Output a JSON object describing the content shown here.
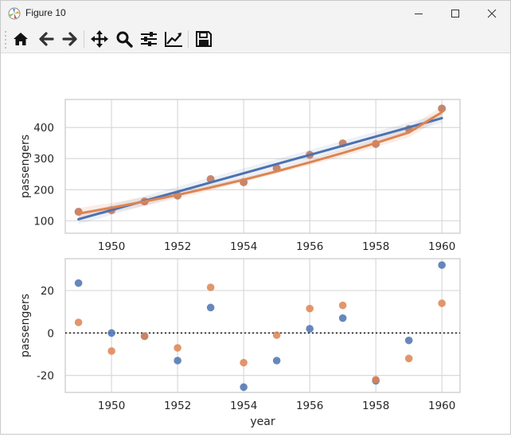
{
  "window": {
    "title": "Figure 10",
    "controls": [
      "minimize",
      "maximize",
      "close"
    ]
  },
  "toolbar": {
    "tools": [
      {
        "name": "home",
        "icon": "home-icon"
      },
      {
        "name": "back",
        "icon": "arrow-left-icon"
      },
      {
        "name": "forward",
        "icon": "arrow-right-icon"
      },
      {
        "name": "pan",
        "icon": "move-icon"
      },
      {
        "name": "zoom",
        "icon": "magnifier-icon"
      },
      {
        "name": "configure-subplots",
        "icon": "sliders-icon"
      },
      {
        "name": "edit-axes",
        "icon": "line-chart-icon"
      },
      {
        "name": "save",
        "icon": "floppy-disk-icon"
      }
    ]
  },
  "chart_data": [
    {
      "type": "scatter",
      "title": "",
      "xlabel": "",
      "ylabel": "passengers",
      "xlim": [
        1948.6,
        1960.55
      ],
      "ylim": [
        60,
        490
      ],
      "xticks": [
        1950,
        1952,
        1954,
        1956,
        1958,
        1960
      ],
      "yticks": [
        100,
        200,
        300,
        400
      ],
      "grid": true,
      "x": [
        1949,
        1950,
        1951,
        1952,
        1953,
        1954,
        1955,
        1956,
        1957,
        1958,
        1959,
        1960
      ],
      "points": [
        129,
        134,
        162,
        181,
        234,
        224,
        269,
        312,
        349,
        347,
        395,
        461
      ],
      "linear_fit": {
        "x": [
          1949,
          1960
        ],
        "y": [
          105,
          430
        ]
      },
      "quadratic_fit": {
        "x": [
          1949,
          1950,
          1951,
          1952,
          1953,
          1954,
          1955,
          1956,
          1957,
          1958,
          1959,
          1960
        ],
        "y": [
          123,
          142,
          162,
          183,
          207,
          232,
          259,
          288,
          318,
          350,
          384,
          449
        ]
      },
      "colors": {
        "linear": "#4c72b0",
        "quadratic": "#dd8452",
        "points": "#c07a5e",
        "grid": "#d6d6d6"
      }
    },
    {
      "type": "scatter",
      "title": "",
      "xlabel": "year",
      "ylabel": "passengers",
      "xlim": [
        1948.6,
        1960.55
      ],
      "ylim": [
        -28,
        35
      ],
      "xticks": [
        1950,
        1952,
        1954,
        1956,
        1958,
        1960
      ],
      "yticks": [
        -20,
        0,
        20
      ],
      "grid": true,
      "zero_line": "dotted",
      "x": [
        1949,
        1950,
        1951,
        1952,
        1953,
        1954,
        1955,
        1956,
        1957,
        1958,
        1959,
        1960
      ],
      "series": [
        {
          "color": "#4c72b0",
          "values": [
            23.5,
            0,
            -1.5,
            -13,
            12,
            -25.5,
            -13,
            2,
            7,
            -22.5,
            -3.5,
            32
          ]
        },
        {
          "color": "#dd8452",
          "values": [
            5,
            -8.5,
            -1.5,
            -7,
            21.5,
            -14,
            -1,
            11.5,
            13,
            -22,
            -12,
            14
          ]
        }
      ]
    }
  ]
}
